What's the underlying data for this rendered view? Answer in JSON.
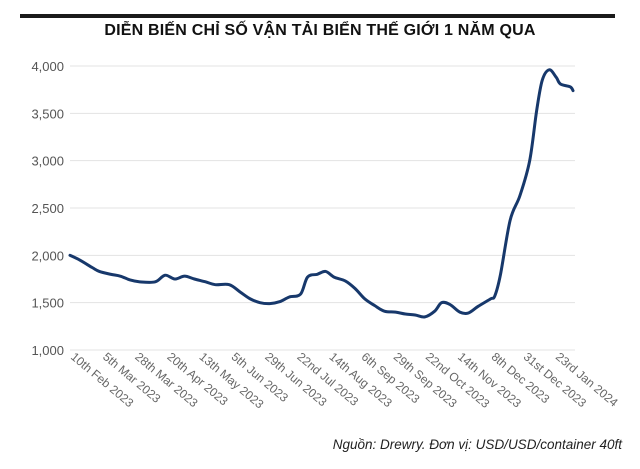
{
  "chart_data": {
    "type": "line",
    "title": "DIỄN BIẾN CHỈ SỐ VẬN TẢI BIỂN THẾ GIỚI 1 NĂM QUA",
    "source_note": "Nguồn: Drewry. Đơn vị: USD/USD/container 40ft",
    "xlabel": "",
    "ylabel": "",
    "ylim": [
      1000,
      4000
    ],
    "yticks": [
      "1,000",
      "1,500",
      "2,000",
      "2,500",
      "3,000",
      "3,500",
      "4,000"
    ],
    "ytick_values": [
      1000,
      1500,
      2000,
      2500,
      3000,
      3500,
      4000
    ],
    "xlim": [
      "2023-02-10",
      "2024-02-05"
    ],
    "xticks": [
      {
        "date": "2023-02-10",
        "label": "10th Feb 2023"
      },
      {
        "date": "2023-03-05",
        "label": "5th Mar 2023"
      },
      {
        "date": "2023-03-28",
        "label": "28th Mar 2023"
      },
      {
        "date": "2023-04-20",
        "label": "20th Apr 2023"
      },
      {
        "date": "2023-05-13",
        "label": "13th May 2023"
      },
      {
        "date": "2023-06-05",
        "label": "5th Jun 2023"
      },
      {
        "date": "2023-06-29",
        "label": "29th Jun 2023"
      },
      {
        "date": "2023-07-22",
        "label": "22nd Jul 2023"
      },
      {
        "date": "2023-08-14",
        "label": "14th Aug 2023"
      },
      {
        "date": "2023-09-06",
        "label": "6th Sep 2023"
      },
      {
        "date": "2023-09-29",
        "label": "29th Sep 2023"
      },
      {
        "date": "2023-10-22",
        "label": "22nd Oct 2023"
      },
      {
        "date": "2023-11-14",
        "label": "14th Nov 2023"
      },
      {
        "date": "2023-12-08",
        "label": "8th Dec 2023"
      },
      {
        "date": "2023-12-31",
        "label": "31st Dec 2023"
      },
      {
        "date": "2024-01-23",
        "label": "23rd Jan 2024"
      }
    ],
    "grid": true,
    "line_color": "#17386b",
    "grid_color": "#e3e3e3",
    "x": [
      "2023-02-10",
      "2023-02-17",
      "2023-02-26",
      "2023-03-03",
      "2023-03-11",
      "2023-03-18",
      "2023-03-25",
      "2023-04-01",
      "2023-04-12",
      "2023-04-19",
      "2023-04-26",
      "2023-05-03",
      "2023-05-10",
      "2023-05-18",
      "2023-05-25",
      "2023-06-04",
      "2023-06-12",
      "2023-06-19",
      "2023-06-26",
      "2023-07-03",
      "2023-07-10",
      "2023-07-17",
      "2023-07-25",
      "2023-07-30",
      "2023-08-06",
      "2023-08-12",
      "2023-08-18",
      "2023-08-26",
      "2023-09-02",
      "2023-09-09",
      "2023-09-16",
      "2023-09-23",
      "2023-10-01",
      "2023-10-08",
      "2023-10-15",
      "2023-10-22",
      "2023-10-29",
      "2023-11-03",
      "2023-11-09",
      "2023-11-16",
      "2023-11-22",
      "2023-11-29",
      "2023-12-08",
      "2023-12-11",
      "2023-12-15",
      "2023-12-22",
      "2023-12-29",
      "2024-01-05",
      "2024-01-10",
      "2024-01-14",
      "2024-01-19",
      "2024-01-24",
      "2024-01-27",
      "2024-02-03",
      "2024-02-05"
    ],
    "series": [
      {
        "values": [
          2000,
          1950,
          1870,
          1830,
          1800,
          1780,
          1740,
          1720,
          1720,
          1790,
          1750,
          1780,
          1750,
          1720,
          1690,
          1690,
          1610,
          1540,
          1500,
          1490,
          1510,
          1560,
          1590,
          1770,
          1800,
          1830,
          1770,
          1730,
          1650,
          1540,
          1470,
          1410,
          1400,
          1380,
          1370,
          1350,
          1410,
          1500,
          1480,
          1400,
          1390,
          1460,
          1540,
          1570,
          1790,
          2370,
          2630,
          3000,
          3530,
          3850,
          3960,
          3880,
          3810,
          3780,
          3740
        ]
      }
    ]
  }
}
